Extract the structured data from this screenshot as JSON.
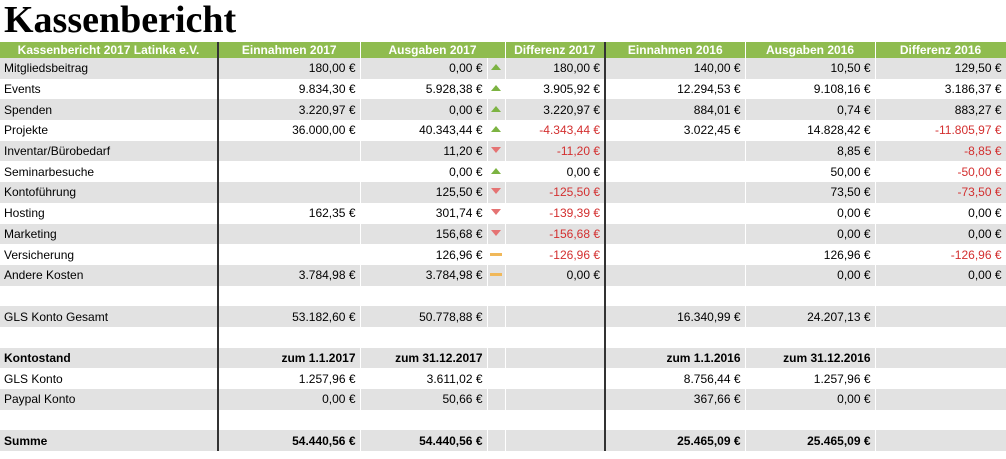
{
  "title": "Kassenbericht",
  "table": {
    "header": [
      "Kassenbericht 2017 Latinka e.V.",
      "Einnahmen 2017",
      "Ausgaben 2017",
      "Differenz 2017",
      "Einnahmen 2016",
      "Ausgaben 2016",
      "Differenz 2016"
    ],
    "rows": [
      [
        "Mitgliedsbeitrag",
        "180,00 €",
        "0,00 €",
        "180,00 €",
        "140,00 €",
        "10,50 €",
        "129,50 €"
      ],
      [
        "Events",
        "9.834,30 €",
        "5.928,38 €",
        "3.905,92 €",
        "12.294,53 €",
        "9.108,16 €",
        "3.186,37 €"
      ],
      [
        "Spenden",
        "3.220,97 €",
        "0,00 €",
        "3.220,97 €",
        "884,01 €",
        "0,74 €",
        "883,27 €"
      ],
      [
        "Projekte",
        "36.000,00 €",
        "40.343,44 €",
        "-4.343,44 €",
        "3.022,45 €",
        "14.828,42 €",
        "-11.805,97 €"
      ],
      [
        "Inventar/Bürobedarf",
        null,
        "11,20 €",
        "-11,20 €",
        null,
        "8,85 €",
        "-8,85 €"
      ],
      [
        "Seminarbesuche",
        null,
        "0,00 €",
        "0,00 €",
        null,
        "50,00 €",
        "-50,00 €"
      ],
      [
        "Kontoführung",
        null,
        "125,50 €",
        "-125,50 €",
        null,
        "73,50 €",
        "-73,50 €"
      ],
      [
        "Hosting",
        "162,35 €",
        "301,74 €",
        "-139,39 €",
        null,
        "0,00 €",
        "0,00 €"
      ],
      [
        "Marketing",
        null,
        "156,68 €",
        "-156,68 €",
        null,
        "0,00 €",
        "0,00 €"
      ],
      [
        "Versicherung",
        null,
        "126,96 €",
        "-126,96 €",
        null,
        "126,96 €",
        "-126,96 €"
      ],
      [
        "Andere Kosten",
        "3.784,98 €",
        "3.784,98 €",
        "0,00 €",
        null,
        "0,00 €",
        "0,00 €"
      ],
      [
        null,
        null,
        null,
        null,
        null,
        null,
        null
      ],
      [
        "GLS Konto Gesamt",
        "53.182,60 €",
        "50.778,88 €",
        null,
        "16.340,99 €",
        "24.207,13 €",
        null
      ],
      [
        null,
        null,
        null,
        null,
        null,
        null,
        null
      ],
      [
        "Kontostand",
        "zum 1.1.2017",
        "zum 31.12.2017",
        null,
        "zum 1.1.2016",
        "zum 31.12.2016",
        null
      ],
      [
        "GLS Konto",
        "1.257,96 €",
        "3.611,02 €",
        null,
        "8.756,44 €",
        "1.257,96 €",
        null
      ],
      [
        "Paypal Konto",
        "0,00 €",
        "50,66 €",
        null,
        "367,66 €",
        "0,00 €",
        null
      ],
      [
        null,
        null,
        null,
        null,
        null,
        null,
        null
      ],
      [
        "Summe",
        "54.440,56 €",
        "54.440,56 €",
        null,
        "25.465,09 €",
        "25.465,09 €",
        null
      ]
    ]
  }
}
